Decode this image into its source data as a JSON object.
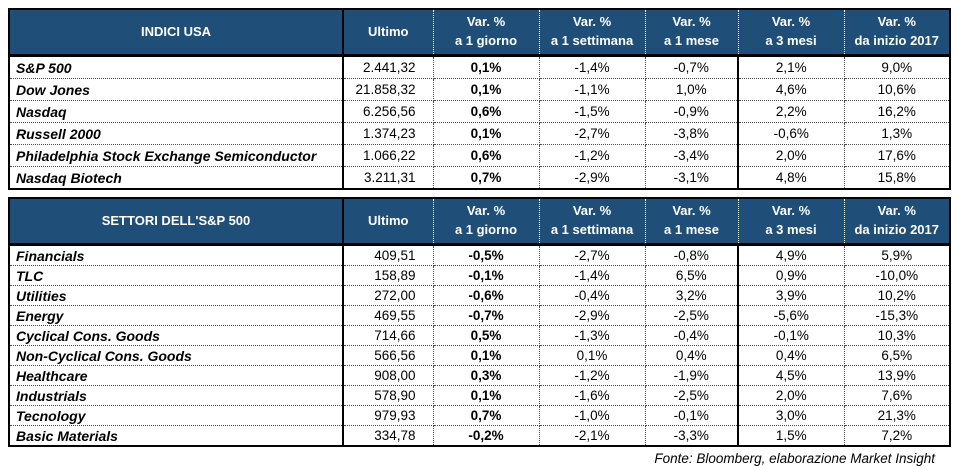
{
  "colors": {
    "header_bg": "#1f4e79",
    "header_text": "#ffffff",
    "border": "#000000"
  },
  "columns": {
    "ultimo": "Ultimo",
    "vars": [
      {
        "l1": "Var. %",
        "l2": "a 1 giorno"
      },
      {
        "l1": "Var. %",
        "l2": "a 1 settimana"
      },
      {
        "l1": "Var. %",
        "l2": "a 1 mese"
      },
      {
        "l1": "Var. %",
        "l2": "a 3 mesi"
      },
      {
        "l1": "Var. %",
        "l2": "da inizio 2017"
      }
    ]
  },
  "tables": [
    {
      "title": "INDICI USA",
      "rows": [
        {
          "name": "S&P 500",
          "ultimo": "2.441,32",
          "vars": [
            "0,1%",
            "-1,4%",
            "-0,7%",
            "2,1%",
            "9,0%"
          ]
        },
        {
          "name": "Dow Jones",
          "ultimo": "21.858,32",
          "vars": [
            "0,1%",
            "-1,1%",
            "1,0%",
            "4,6%",
            "10,6%"
          ]
        },
        {
          "name": "Nasdaq",
          "ultimo": "6.256,56",
          "vars": [
            "0,6%",
            "-1,5%",
            "-0,9%",
            "2,2%",
            "16,2%"
          ]
        },
        {
          "name": "Russell 2000",
          "ultimo": "1.374,23",
          "vars": [
            "0,1%",
            "-2,7%",
            "-3,8%",
            "-0,6%",
            "1,3%"
          ]
        },
        {
          "name": "Philadelphia Stock Exchange Semiconductor",
          "ultimo": "1.066,22",
          "vars": [
            "0,6%",
            "-1,2%",
            "-3,4%",
            "2,0%",
            "17,6%"
          ]
        },
        {
          "name": "Nasdaq Biotech",
          "ultimo": "3.211,31",
          "vars": [
            "0,7%",
            "-2,9%",
            "-3,1%",
            "4,8%",
            "15,8%"
          ]
        }
      ]
    },
    {
      "title": "SETTORI DELL'S&P 500",
      "rows": [
        {
          "name": "Financials",
          "ultimo": "409,51",
          "vars": [
            "-0,5%",
            "-2,7%",
            "-0,8%",
            "4,9%",
            "5,9%"
          ]
        },
        {
          "name": "TLC",
          "ultimo": "158,89",
          "vars": [
            "-0,1%",
            "-1,4%",
            "6,5%",
            "0,9%",
            "-10,0%"
          ]
        },
        {
          "name": "Utilities",
          "ultimo": "272,00",
          "vars": [
            "-0,6%",
            "-0,4%",
            "3,2%",
            "3,9%",
            "10,2%"
          ]
        },
        {
          "name": "Energy",
          "ultimo": "469,55",
          "vars": [
            "-0,7%",
            "-2,9%",
            "-2,5%",
            "-5,6%",
            "-15,3%"
          ]
        },
        {
          "name": "Cyclical Cons. Goods",
          "ultimo": "714,66",
          "vars": [
            "0,5%",
            "-1,3%",
            "-0,4%",
            "-0,1%",
            "10,3%"
          ]
        },
        {
          "name": "Non-Cyclical Cons. Goods",
          "ultimo": "566,56",
          "vars": [
            "0,1%",
            "0,1%",
            "0,4%",
            "0,4%",
            "6,5%"
          ]
        },
        {
          "name": "Healthcare",
          "ultimo": "908,00",
          "vars": [
            "0,3%",
            "-1,2%",
            "-1,9%",
            "4,5%",
            "13,9%"
          ]
        },
        {
          "name": "Industrials",
          "ultimo": "578,90",
          "vars": [
            "0,1%",
            "-1,6%",
            "-2,5%",
            "2,0%",
            "7,6%"
          ]
        },
        {
          "name": "Tecnology",
          "ultimo": "979,93",
          "vars": [
            "0,7%",
            "-1,0%",
            "-0,1%",
            "3,0%",
            "21,3%"
          ]
        },
        {
          "name": "Basic Materials",
          "ultimo": "334,78",
          "vars": [
            "-0,2%",
            "-2,1%",
            "-3,3%",
            "1,5%",
            "7,2%"
          ]
        }
      ]
    }
  ],
  "footer": "Fonte: Bloomberg, elaborazione Market Insight"
}
